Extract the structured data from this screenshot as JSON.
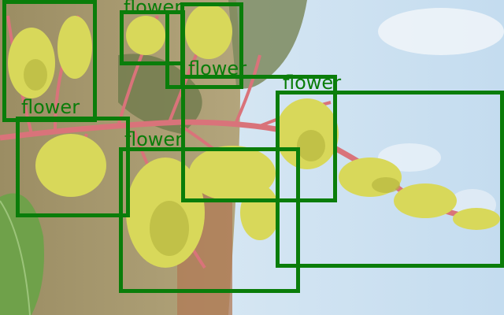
{
  "image": {
    "description_colors": {
      "sky": "#cfe3f2",
      "ground": "#a4946a",
      "stem": "#d9737a",
      "blossom": "#d8d85a",
      "leaf": "#6fa14a",
      "box": "#0a7d0a"
    }
  },
  "detections": [
    {
      "label": "flower"
    },
    {
      "label": "flower"
    },
    {
      "label": "flower"
    },
    {
      "label": "flower"
    },
    {
      "label": "flower"
    },
    {
      "label": "flower"
    },
    {
      "label": "flower"
    },
    {
      "label": "flower"
    }
  ]
}
